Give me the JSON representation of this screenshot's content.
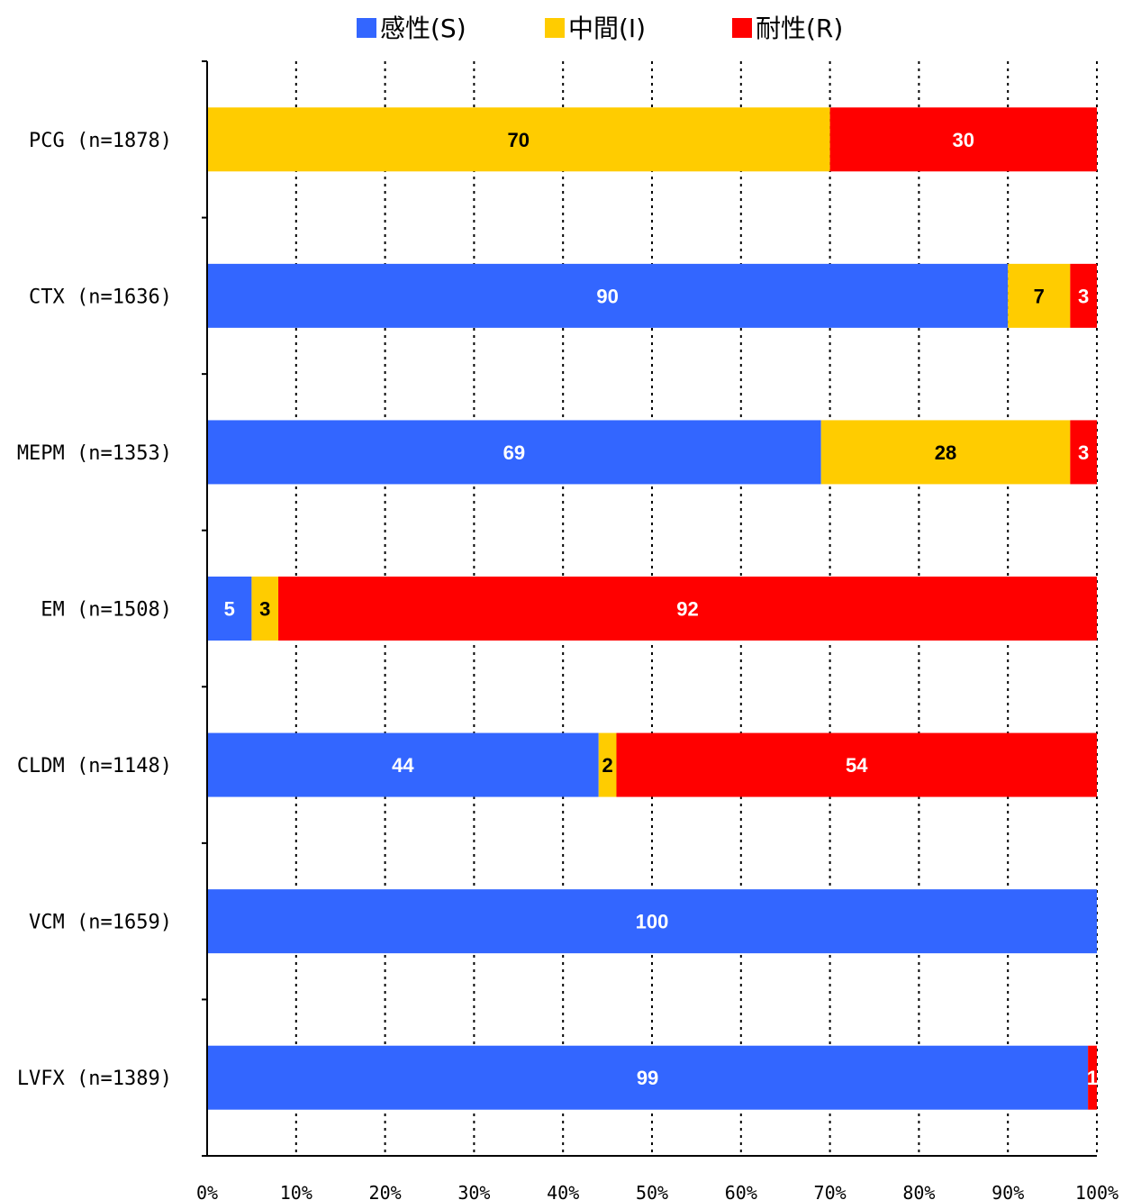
{
  "chart_data": {
    "type": "bar",
    "orientation": "horizontal",
    "stacked": "percent",
    "categories": [
      "PCG (n=1878)",
      "CTX (n=1636)",
      "MEPM (n=1353)",
      "EM (n=1508)",
      "CLDM (n=1148)",
      "VCM (n=1659)",
      "LVFX (n=1389)"
    ],
    "series": [
      {
        "name": "感性(S)",
        "color": "#3366ff",
        "label_color": "#ffffff",
        "values": [
          0,
          90,
          69,
          5,
          44,
          100,
          99
        ]
      },
      {
        "name": "中間(I)",
        "color": "#ffcc00",
        "label_color": "#000000",
        "values": [
          70,
          7,
          28,
          3,
          2,
          0,
          0
        ]
      },
      {
        "name": "耐性(R)",
        "color": "#ff0000",
        "label_color": "#ffffff",
        "values": [
          30,
          3,
          3,
          92,
          54,
          0,
          1
        ]
      }
    ],
    "xlim": [
      0,
      100
    ],
    "x_ticks": [
      "0%",
      "10%",
      "20%",
      "30%",
      "40%",
      "50%",
      "60%",
      "70%",
      "80%",
      "90%",
      "100%"
    ],
    "grid": "vertical dotted",
    "legend": "top-center"
  }
}
